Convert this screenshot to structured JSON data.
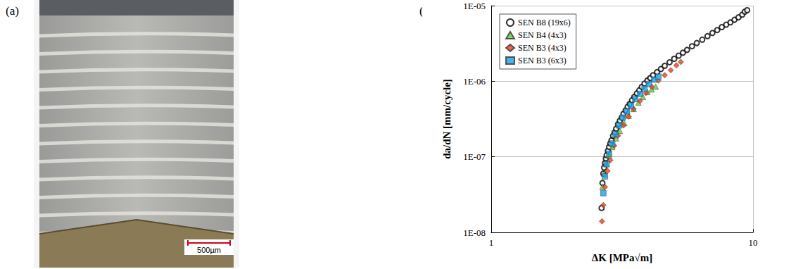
{
  "panels": [
    {
      "label": "(a)",
      "image": {
        "scale_bar": "500µm"
      }
    },
    {
      "label": "(b)"
    }
  ],
  "chart_data": {
    "type": "scatter",
    "x_label": "ΔK [MPa√m]",
    "y_label": "da/dN [mm/cycle]",
    "log": true,
    "grid": true,
    "legend": "upper left",
    "xlim": [
      1,
      10
    ],
    "xticks": [
      1,
      10
    ],
    "ylim": [
      1e-08,
      1e-05
    ],
    "yticks": [
      {
        "value": 1e-08,
        "label": "1E-08"
      },
      {
        "value": 1e-07,
        "label": "1E-07"
      },
      {
        "value": 1e-06,
        "label": "1E-06"
      },
      {
        "value": 1e-05,
        "label": "1E-05"
      }
    ],
    "series": [
      {
        "name": "SEN B8 (19x6)",
        "color": "#000000",
        "marker": "circle_open",
        "x": [
          2.64,
          2.66,
          2.68,
          2.7,
          2.72,
          2.74,
          2.76,
          2.79,
          2.82,
          2.85,
          2.88,
          2.92,
          2.96,
          3.0,
          3.05,
          3.1,
          3.15,
          3.2,
          3.26,
          3.32,
          3.38,
          3.45,
          3.52,
          3.6,
          3.68,
          3.76,
          3.85,
          3.95,
          4.05,
          4.15,
          4.3,
          4.45,
          4.6,
          4.8,
          5.0,
          5.2,
          5.4,
          5.6,
          5.85,
          6.1,
          6.4,
          6.7,
          7.0,
          7.3,
          7.6,
          7.9,
          8.2,
          8.5,
          8.8,
          9.1,
          9.3,
          9.5
        ],
        "values": [
          2.1e-08,
          4.5e-08,
          6e-08,
          7.2e-08,
          8.3e-08,
          9.5e-08,
          1.05e-07,
          1.2e-07,
          1.35e-07,
          1.5e-07,
          1.65e-07,
          1.9e-07,
          2.1e-07,
          2.35e-07,
          2.7e-07,
          3e-07,
          3.3e-07,
          3.7e-07,
          4.1e-07,
          4.6e-07,
          5e-07,
          5.6e-07,
          6.2e-07,
          6.9e-07,
          7.6e-07,
          8.4e-07,
          9.3e-07,
          1.02e-06,
          1.1e-06,
          1.2e-06,
          1.32e-06,
          1.45e-06,
          1.6e-06,
          1.78e-06,
          1.98e-06,
          2.18e-06,
          2.38e-06,
          2.6e-06,
          2.9e-06,
          3.2e-06,
          3.55e-06,
          3.95e-06,
          4.35e-06,
          4.75e-06,
          5.2e-06,
          5.6e-06,
          6e-06,
          6.5e-06,
          7e-06,
          7.6e-06,
          8.3e-06,
          8.7e-06
        ]
      },
      {
        "name": "SEN B4 (4x3)",
        "color": "#66cc33",
        "marker": "triangle",
        "x": [
          2.66,
          2.7,
          2.75,
          2.82,
          2.9,
          3.0,
          3.1,
          3.22,
          3.35,
          3.5,
          3.65,
          3.8,
          3.95,
          4.1,
          4.25
        ],
        "values": [
          4e-08,
          6e-08,
          8e-08,
          1.05e-07,
          1.35e-07,
          1.75e-07,
          2.2e-07,
          2.8e-07,
          3.5e-07,
          4.3e-07,
          5.2e-07,
          6.2e-07,
          7.2e-07,
          7.8e-07,
          8.5e-07
        ]
      },
      {
        "name": "SEN B3 (4x3)",
        "color": "#e8401c",
        "marker": "diamond",
        "x": [
          2.65,
          2.68,
          2.72,
          2.78,
          2.85,
          2.95,
          3.05,
          3.2,
          3.35,
          3.5,
          3.7,
          3.9,
          4.1,
          4.35,
          4.6,
          4.85,
          5.1,
          5.3
        ],
        "values": [
          1.4e-08,
          2.3e-08,
          4e-08,
          6.5e-08,
          9e-08,
          1.4e-07,
          1.9e-07,
          2.6e-07,
          3.4e-07,
          4.3e-07,
          5.5e-07,
          7e-07,
          8.5e-07,
          1.02e-06,
          1.2e-06,
          1.4e-06,
          1.62e-06,
          1.8e-06
        ]
      },
      {
        "name": "SEN B3 (6x3)",
        "color": "#1ea0e6",
        "marker": "square",
        "x": [
          2.68,
          2.72,
          2.76,
          2.82,
          2.9,
          2.98,
          3.08,
          3.18,
          3.3,
          3.42,
          3.55,
          3.7,
          3.85,
          4.0,
          4.2,
          4.35
        ],
        "values": [
          3.3e-08,
          5.5e-08,
          8e-08,
          1.1e-07,
          1.5e-07,
          2e-07,
          2.6e-07,
          3.3e-07,
          4e-07,
          4.8e-07,
          5.8e-07,
          6.8e-07,
          8e-07,
          9.2e-07,
          1.05e-06,
          1.15e-06
        ]
      }
    ]
  }
}
